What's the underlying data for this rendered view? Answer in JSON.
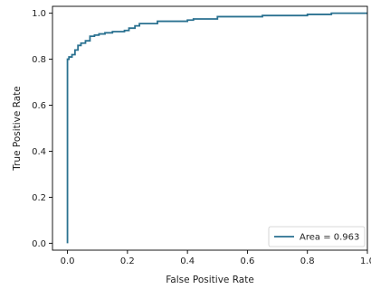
{
  "chart_data": {
    "type": "line",
    "title": "",
    "xlabel": "False Positive Rate",
    "ylabel": "True Positive Rate",
    "xlim": [
      -0.05,
      1.0
    ],
    "ylim": [
      -0.03,
      1.03
    ],
    "xticks": [
      0.0,
      0.2,
      0.4,
      0.6,
      0.8,
      1.0
    ],
    "xtick_labels": [
      "0.0",
      "0.2",
      "0.4",
      "0.6",
      "0.8",
      "1.0"
    ],
    "yticks": [
      0.0,
      0.2,
      0.4,
      0.6,
      0.8,
      1.0
    ],
    "ytick_labels": [
      "0.0",
      "0.2",
      "0.4",
      "0.6",
      "0.8",
      "1.0"
    ],
    "grid": false,
    "legend_position": "lower-right",
    "series": [
      {
        "name": "Area = 0.963",
        "color": "#2a7190",
        "x": [
          0.0,
          0.0,
          0.005,
          0.005,
          0.015,
          0.015,
          0.025,
          0.025,
          0.035,
          0.035,
          0.045,
          0.045,
          0.06,
          0.06,
          0.075,
          0.075,
          0.09,
          0.09,
          0.105,
          0.105,
          0.125,
          0.125,
          0.15,
          0.15,
          0.19,
          0.19,
          0.205,
          0.205,
          0.225,
          0.225,
          0.24,
          0.24,
          0.3,
          0.3,
          0.4,
          0.4,
          0.42,
          0.42,
          0.5,
          0.5,
          0.65,
          0.65,
          0.8,
          0.8,
          0.88,
          0.88,
          1.0
        ],
        "y": [
          0.0,
          0.8,
          0.8,
          0.81,
          0.81,
          0.82,
          0.82,
          0.84,
          0.84,
          0.86,
          0.86,
          0.87,
          0.87,
          0.88,
          0.88,
          0.9,
          0.9,
          0.905,
          0.905,
          0.91,
          0.91,
          0.915,
          0.915,
          0.92,
          0.92,
          0.925,
          0.925,
          0.935,
          0.935,
          0.945,
          0.945,
          0.955,
          0.955,
          0.965,
          0.965,
          0.97,
          0.97,
          0.975,
          0.975,
          0.985,
          0.985,
          0.99,
          0.99,
          0.995,
          0.995,
          1.0,
          1.0
        ]
      }
    ]
  }
}
